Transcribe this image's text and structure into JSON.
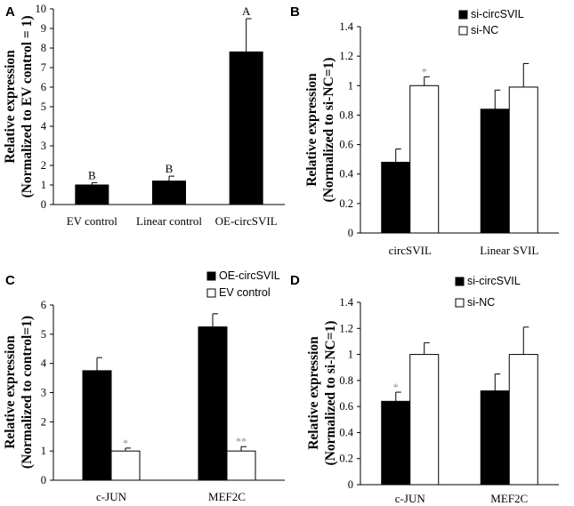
{
  "chart_data": [
    {
      "panel": "A",
      "type": "bar",
      "ylabel_lines": [
        "Relative expression",
        "(Normalized to EV control = 1)"
      ],
      "ylim": [
        0,
        10
      ],
      "yticks": [
        0,
        1,
        2,
        3,
        4,
        5,
        6,
        7,
        8,
        9,
        10
      ],
      "categories": [
        "EV control",
        "Linear control",
        "OE-circSVIL"
      ],
      "series": [
        {
          "name": "",
          "color": "#000000",
          "values": [
            1.0,
            1.2,
            7.8
          ],
          "errors": [
            0.12,
            0.25,
            1.7
          ],
          "labels": [
            "B",
            "B",
            "A"
          ]
        }
      ]
    },
    {
      "panel": "B",
      "type": "bar",
      "ylabel_lines": [
        "Relative expression",
        "(Normalized to si-NC=1)"
      ],
      "ylim": [
        0,
        1.4
      ],
      "yticks": [
        0,
        0.2,
        0.4,
        0.6,
        0.8,
        1,
        1.2,
        1.4
      ],
      "categories": [
        "circSVIL",
        "Linear SVIL"
      ],
      "legend_position": "top-right",
      "series": [
        {
          "name": "si-circSVIL",
          "color": "#000000",
          "values": [
            0.48,
            0.84
          ],
          "errors": [
            0.09,
            0.13
          ],
          "labels": [
            "",
            ""
          ]
        },
        {
          "name": "si-NC",
          "color": "#ffffff",
          "values": [
            1.0,
            0.99
          ],
          "errors": [
            0.06,
            0.16
          ],
          "labels": [
            "*",
            ""
          ]
        }
      ]
    },
    {
      "panel": "C",
      "type": "bar",
      "ylabel_lines": [
        "Relative expression",
        "(Normalized to control=1)"
      ],
      "ylim": [
        0,
        6
      ],
      "yticks": [
        0,
        1,
        2,
        3,
        4,
        5,
        6
      ],
      "categories": [
        "c-JUN",
        "MEF2C"
      ],
      "legend_position": "top-right",
      "series": [
        {
          "name": "OE-circSVIL",
          "color": "#000000",
          "values": [
            3.75,
            5.25
          ],
          "errors": [
            0.45,
            0.45
          ],
          "labels": [
            "",
            ""
          ]
        },
        {
          "name": "EV control",
          "color": "#ffffff",
          "values": [
            1.0,
            1.0
          ],
          "errors": [
            0.1,
            0.15
          ],
          "labels": [
            "*",
            "**"
          ]
        }
      ]
    },
    {
      "panel": "D",
      "type": "bar",
      "ylabel_lines": [
        "Relative expression",
        "(Normalized to si-NC=1)"
      ],
      "ylim": [
        0,
        1.4
      ],
      "yticks": [
        0,
        0.2,
        0.4,
        0.6,
        0.8,
        1,
        1.2,
        1.4
      ],
      "categories": [
        "c-JUN",
        "MEF2C"
      ],
      "legend_position": "top-right",
      "series": [
        {
          "name": "si-circSVIL",
          "color": "#000000",
          "values": [
            0.64,
            0.72
          ],
          "errors": [
            0.07,
            0.13
          ],
          "labels": [
            "*",
            ""
          ]
        },
        {
          "name": "si-NC",
          "color": "#ffffff",
          "values": [
            1.0,
            1.0
          ],
          "errors": [
            0.09,
            0.21
          ],
          "labels": [
            "",
            ""
          ]
        }
      ]
    }
  ]
}
